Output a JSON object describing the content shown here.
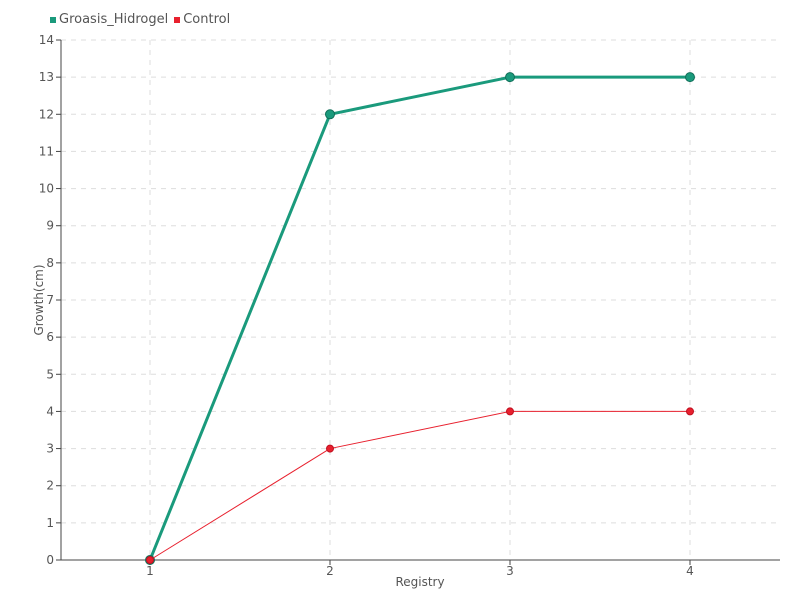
{
  "chart_data": {
    "type": "line",
    "title": "",
    "xlabel": "Registry",
    "ylabel": "Growth(cm)",
    "categories": [
      "1",
      "2",
      "3",
      "4"
    ],
    "ylim": [
      0,
      14
    ],
    "yticks": [
      0,
      1,
      2,
      3,
      4,
      5,
      6,
      7,
      8,
      9,
      10,
      11,
      12,
      13,
      14
    ],
    "grid": true,
    "legend_position": "top-left",
    "series": [
      {
        "name": "Groasis_Hidrogel",
        "color": "#1a9a7c",
        "values": [
          0,
          12,
          13,
          13
        ]
      },
      {
        "name": "Control",
        "color": "#e8202e",
        "values": [
          0,
          3,
          4,
          4
        ]
      }
    ]
  }
}
